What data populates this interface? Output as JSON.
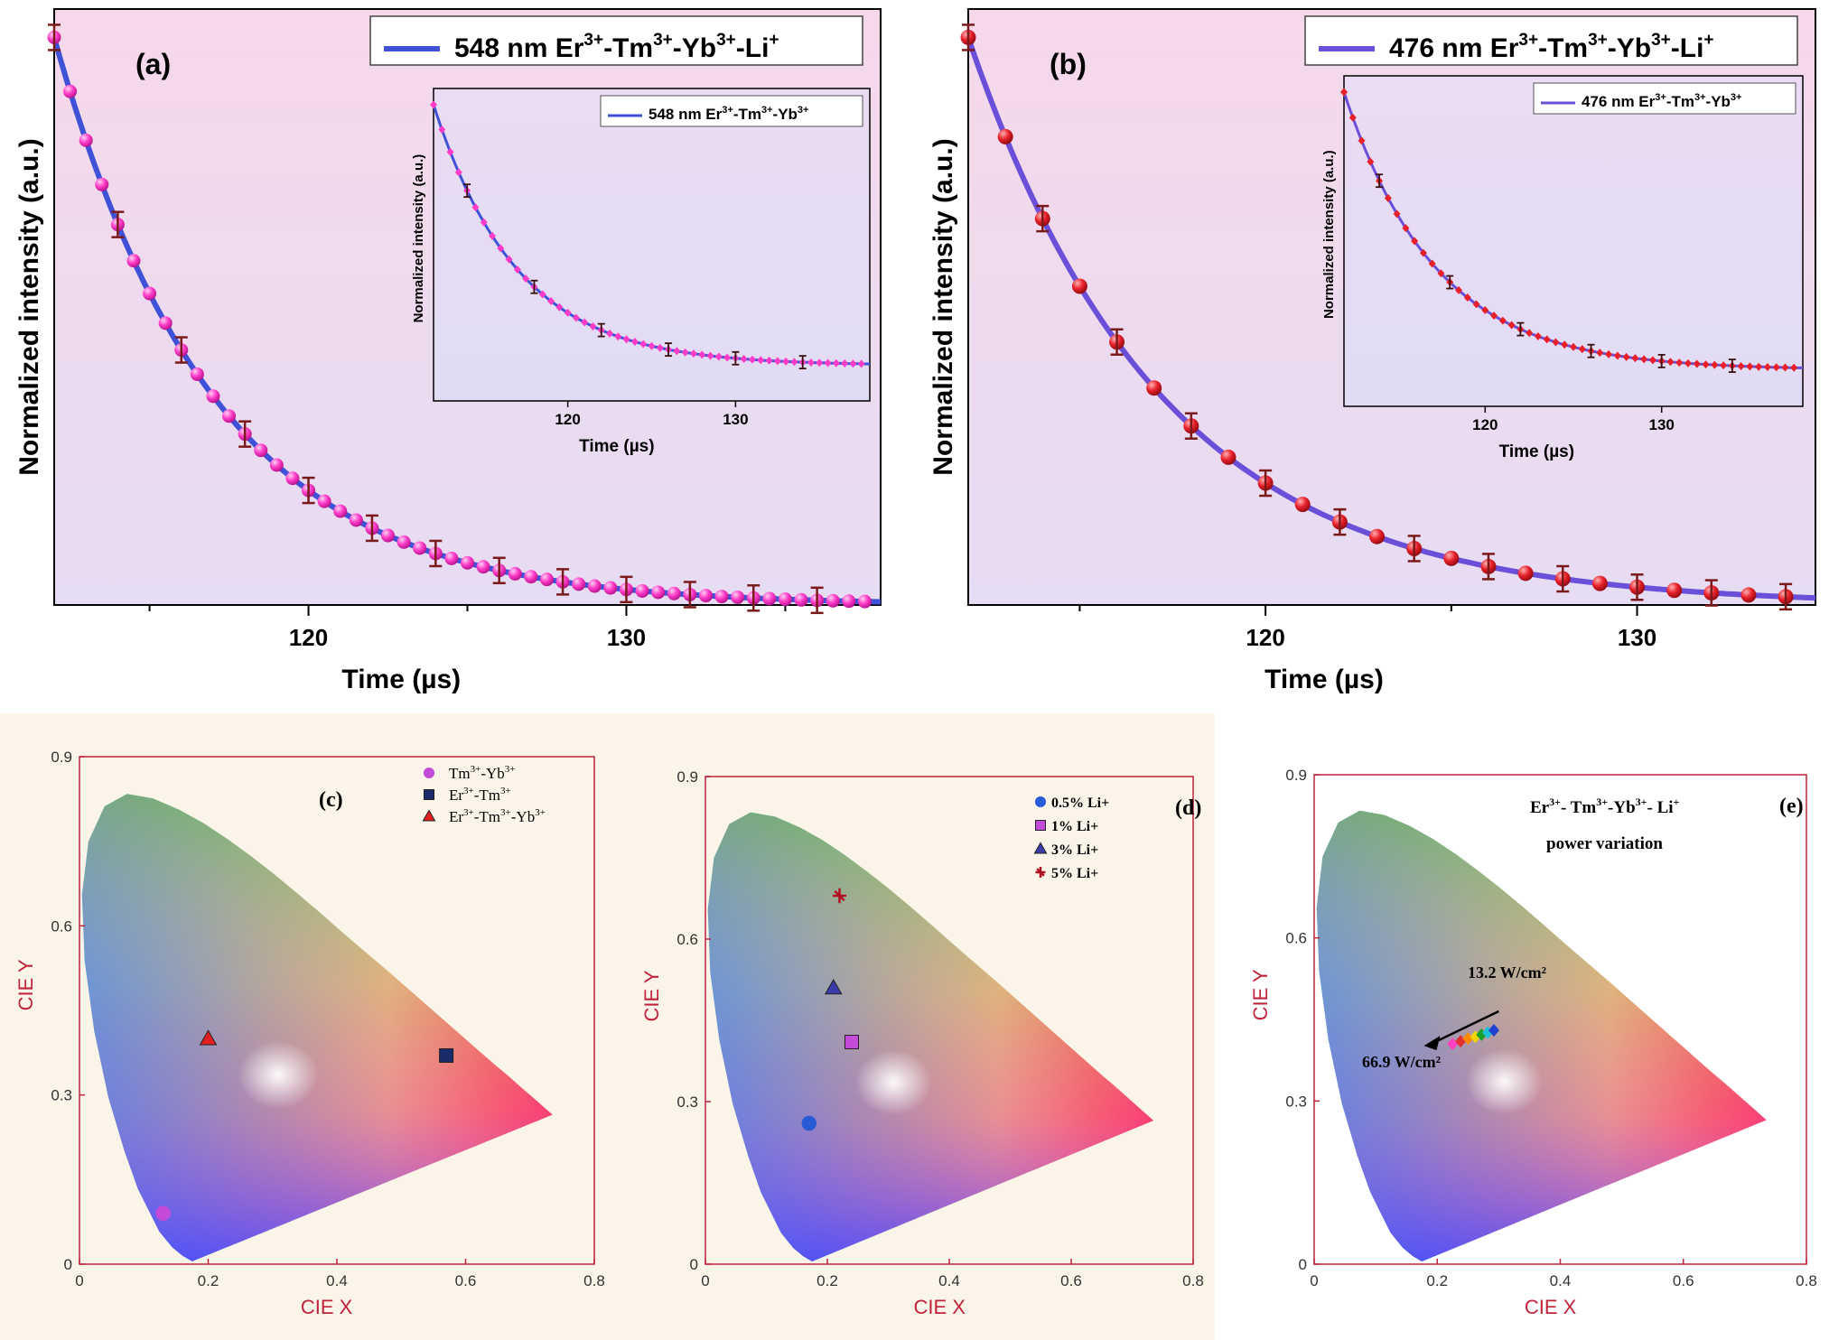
{
  "colors": {
    "plot_bg_top": "#f5d9ea",
    "plot_bg_bottom": "#e8dcf2",
    "fit_line": "#3f51d6",
    "fit_line_b": "#6a4fd8",
    "marker_a": "#ff3cc8",
    "marker_b": "#e8202a",
    "error_bar": "#7a1a1a",
    "cie_axis": "#c0223a",
    "cie_bg": "#fbf4e8"
  },
  "chart_data": [
    {
      "id": "a",
      "type": "scatter",
      "panel_label": "(a)",
      "xlabel": "Time (µs)",
      "ylabel": "Normalized intensity (a.u.)",
      "xlim": [
        112,
        138
      ],
      "ylim": [
        0.0,
        1.05
      ],
      "xticks": [
        120,
        130
      ],
      "x_minor_ticks": [
        115,
        125,
        135
      ],
      "legend": {
        "text": "548 nm Er3+-Tm3+-Yb3+-Li+",
        "parts": [
          "548 nm Er",
          "3+",
          "-Tm",
          "3+",
          "-Yb",
          "3+",
          "-Li",
          "+"
        ],
        "position": "top-right"
      },
      "decay": {
        "x0": 112,
        "amplitude": 1.0,
        "tau": 5.0,
        "offset": 0.0
      },
      "points_x_range": [
        112,
        137.6
      ],
      "points_step": 0.5,
      "error_bar_x": [
        112,
        114,
        116,
        118,
        120,
        122,
        124,
        126,
        128,
        130,
        132,
        134,
        136
      ],
      "inset": {
        "xlabel": "Time (µs)",
        "ylabel": "Normalized intensity (a.u.)",
        "xlim": [
          112,
          138
        ],
        "xticks": [
          120,
          130
        ],
        "legend": {
          "text": "548 nm Er3+-Tm3+-Yb3+",
          "parts": [
            "548 nm Er",
            "3+",
            "-Tm",
            "3+",
            "-Yb",
            "3+"
          ]
        },
        "points_step": 0.5,
        "error_bar_x": [
          114,
          118,
          122,
          126,
          130,
          134
        ]
      }
    },
    {
      "id": "b",
      "type": "scatter",
      "panel_label": "(b)",
      "xlabel": "Time (µs)",
      "ylabel": "Normalized intensity (a.u.)",
      "xlim": [
        112,
        134.8
      ],
      "ylim": [
        0.0,
        1.05
      ],
      "xticks": [
        120,
        130
      ],
      "x_minor_ticks": [
        115,
        125
      ],
      "legend": {
        "text": "476 nm Er3+-Tm3+-Yb3+-Li+",
        "parts": [
          "476 nm Er",
          "3+",
          "-Tm",
          "3+",
          "-Yb",
          "3+",
          "-Li",
          "+"
        ],
        "position": "top-right"
      },
      "decay": {
        "x0": 112,
        "amplitude": 1.0,
        "tau": 5.2,
        "offset": 0.0
      },
      "points_x_range": [
        112,
        134.5
      ],
      "points_step": 1.0,
      "error_bar_x": [
        112,
        114,
        116,
        118,
        120,
        122,
        124,
        126,
        128,
        130,
        132,
        134
      ],
      "inset": {
        "xlabel": "Time (µs)",
        "ylabel": "Normalized intensity (a.u.)",
        "xlim": [
          112,
          138
        ],
        "xticks": [
          120,
          130
        ],
        "legend": {
          "text": "476 nm Er3+-Tm3+-Yb3+",
          "parts": [
            "476 nm Er",
            "3+",
            "-Tm",
            "3+",
            "-Yb",
            "3+"
          ]
        },
        "points_step": 0.5,
        "error_bar_x": [
          114,
          118,
          122,
          126,
          130,
          134
        ]
      }
    },
    {
      "id": "c",
      "type": "scatter",
      "panel_label": "(c)",
      "xlabel": "CIE X",
      "ylabel": "CIE Y",
      "xlim": [
        0,
        0.8
      ],
      "ylim": [
        0,
        0.9
      ],
      "xticks": [
        0,
        0.2,
        0.4,
        0.6,
        0.8
      ],
      "yticks": [
        0,
        0.3,
        0.6,
        0.9
      ],
      "series": [
        {
          "name": "Tm3+-Yb3+",
          "label_parts": [
            "Tm",
            "3+",
            "-Yb",
            "3+"
          ],
          "marker": "circle",
          "color": "#c44ad9",
          "x": 0.13,
          "y": 0.09
        },
        {
          "name": "Er3+-Tm3+",
          "label_parts": [
            "Er",
            "3+",
            "-Tm",
            "3+"
          ],
          "marker": "square",
          "color": "#1b2a6b",
          "x": 0.57,
          "y": 0.37
        },
        {
          "name": "Er3+-Tm3+-Yb3+",
          "label_parts": [
            "Er",
            "3+",
            "-Tm",
            "3+",
            "-Yb",
            "3+"
          ],
          "marker": "triangle",
          "color": "#e02020",
          "x": 0.2,
          "y": 0.4
        }
      ]
    },
    {
      "id": "d",
      "type": "scatter",
      "panel_label": "(d)",
      "xlabel": "CIE X",
      "ylabel": "CIE Y",
      "xlim": [
        0,
        0.8
      ],
      "ylim": [
        0,
        0.9
      ],
      "xticks": [
        0,
        0.2,
        0.4,
        0.6,
        0.8
      ],
      "yticks": [
        0,
        0.3,
        0.6,
        0.9
      ],
      "series": [
        {
          "name": "0.5% Li+",
          "label_parts": [
            "0.5% Li+"
          ],
          "marker": "circle",
          "color": "#2a5bd6",
          "x": 0.17,
          "y": 0.26
        },
        {
          "name": "1% Li+",
          "label_parts": [
            "1% Li+"
          ],
          "marker": "square",
          "color": "#c44ad9",
          "x": 0.24,
          "y": 0.41
        },
        {
          "name": "3% Li+",
          "label_parts": [
            "3% Li+"
          ],
          "marker": "triangle",
          "color": "#3a3aa8",
          "x": 0.21,
          "y": 0.51
        },
        {
          "name": "5% Li+",
          "label_parts": [
            "5% Li+"
          ],
          "marker": "star",
          "color": "#b01020",
          "x": 0.22,
          "y": 0.68
        }
      ]
    },
    {
      "id": "e",
      "type": "scatter",
      "panel_label": "(e)",
      "xlabel": "CIE X",
      "ylabel": "CIE Y",
      "xlim": [
        0,
        0.8
      ],
      "ylim": [
        0,
        0.9
      ],
      "xticks": [
        0,
        0.2,
        0.4,
        0.6,
        0.8
      ],
      "yticks": [
        0,
        0.3,
        0.6,
        0.9
      ],
      "title_lines": [
        "Er3+- Tm3+-Yb3+- Li+",
        "power variation"
      ],
      "title_parts": [
        "Er",
        "3+",
        "- Tm",
        "3+",
        "-Yb",
        "3+",
        "- Li",
        "+"
      ],
      "annotation_top": "13.2 W/cm²",
      "annotation_bottom": "66.9 W/cm²",
      "series": [
        {
          "name": "p1",
          "x": 0.225,
          "y": 0.405,
          "color": "#ff40c0"
        },
        {
          "name": "p2",
          "x": 0.238,
          "y": 0.41,
          "color": "#e03030"
        },
        {
          "name": "p3",
          "x": 0.25,
          "y": 0.415,
          "color": "#ff8a00"
        },
        {
          "name": "p4",
          "x": 0.262,
          "y": 0.418,
          "color": "#f2d400"
        },
        {
          "name": "p5",
          "x": 0.272,
          "y": 0.422,
          "color": "#1aa028"
        },
        {
          "name": "p6",
          "x": 0.282,
          "y": 0.426,
          "color": "#20c0d8"
        },
        {
          "name": "p7",
          "x": 0.292,
          "y": 0.43,
          "color": "#2040d0"
        }
      ]
    }
  ]
}
